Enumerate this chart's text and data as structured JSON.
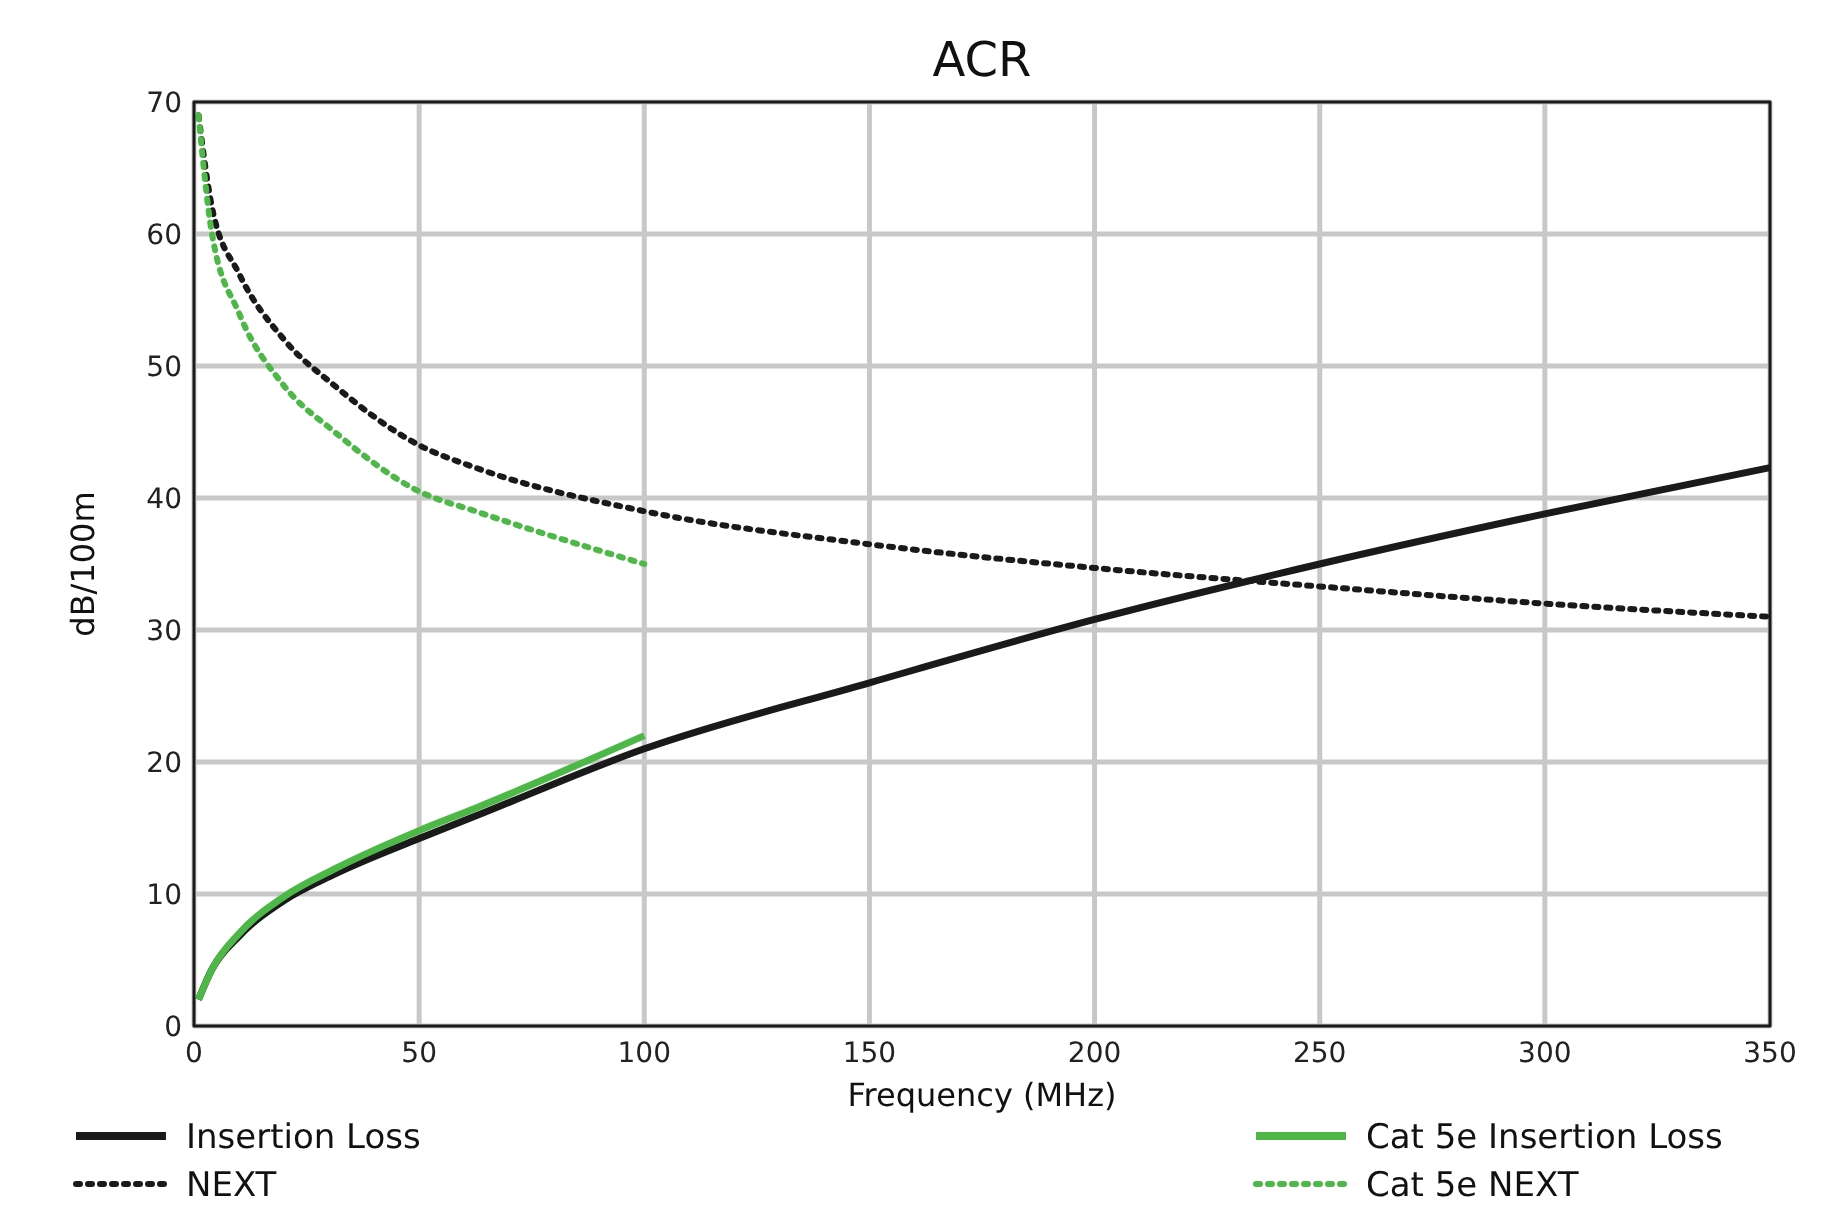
{
  "chart_data": {
    "type": "line",
    "title": "ACR",
    "xlabel": "Frequency (MHz)",
    "ylabel": "dB/100m",
    "xlim": [
      0,
      350
    ],
    "xticks": [
      0,
      50,
      100,
      150,
      200,
      250,
      300,
      350
    ],
    "ylim": [
      0,
      70
    ],
    "yticks": [
      0,
      10,
      20,
      30,
      40,
      50,
      60,
      70
    ],
    "grid": true,
    "legend": "bottom",
    "marker": "none",
    "series": [
      {
        "name": "Insertion Loss",
        "color": "#1a1a1a",
        "line_style": "solid",
        "x": [
          1,
          4,
          10,
          20,
          31.25,
          50,
          62.5,
          100,
          150,
          200,
          250,
          300,
          350
        ],
        "values": [
          2,
          4.3,
          6.8,
          9.5,
          11.5,
          14.2,
          15.9,
          21,
          26,
          30.8,
          35,
          38.8,
          42.3
        ]
      },
      {
        "name": "NEXT",
        "color": "#1a1a1a",
        "line_style": "dotted",
        "x": [
          1,
          4,
          10,
          20,
          31.25,
          50,
          62.5,
          100,
          150,
          200,
          250,
          300,
          350
        ],
        "values": [
          69,
          62,
          57,
          52,
          48.5,
          44,
          42.3,
          39,
          36.5,
          34.7,
          33.3,
          32,
          31
        ]
      },
      {
        "name": "Cat 5e Insertion Loss",
        "color": "#4db848",
        "line_style": "solid",
        "x": [
          1,
          4,
          10,
          20,
          31.25,
          50,
          62.5,
          100
        ],
        "values": [
          2,
          4.3,
          7,
          9.8,
          11.9,
          14.8,
          16.5,
          22
        ]
      },
      {
        "name": "Cat 5e NEXT",
        "color": "#4db848",
        "line_style": "dotted",
        "x": [
          1,
          4,
          10,
          20,
          31.25,
          50,
          62.5,
          100
        ],
        "values": [
          69,
          60,
          54,
          48.5,
          45,
          40.5,
          39,
          35
        ]
      }
    ]
  }
}
